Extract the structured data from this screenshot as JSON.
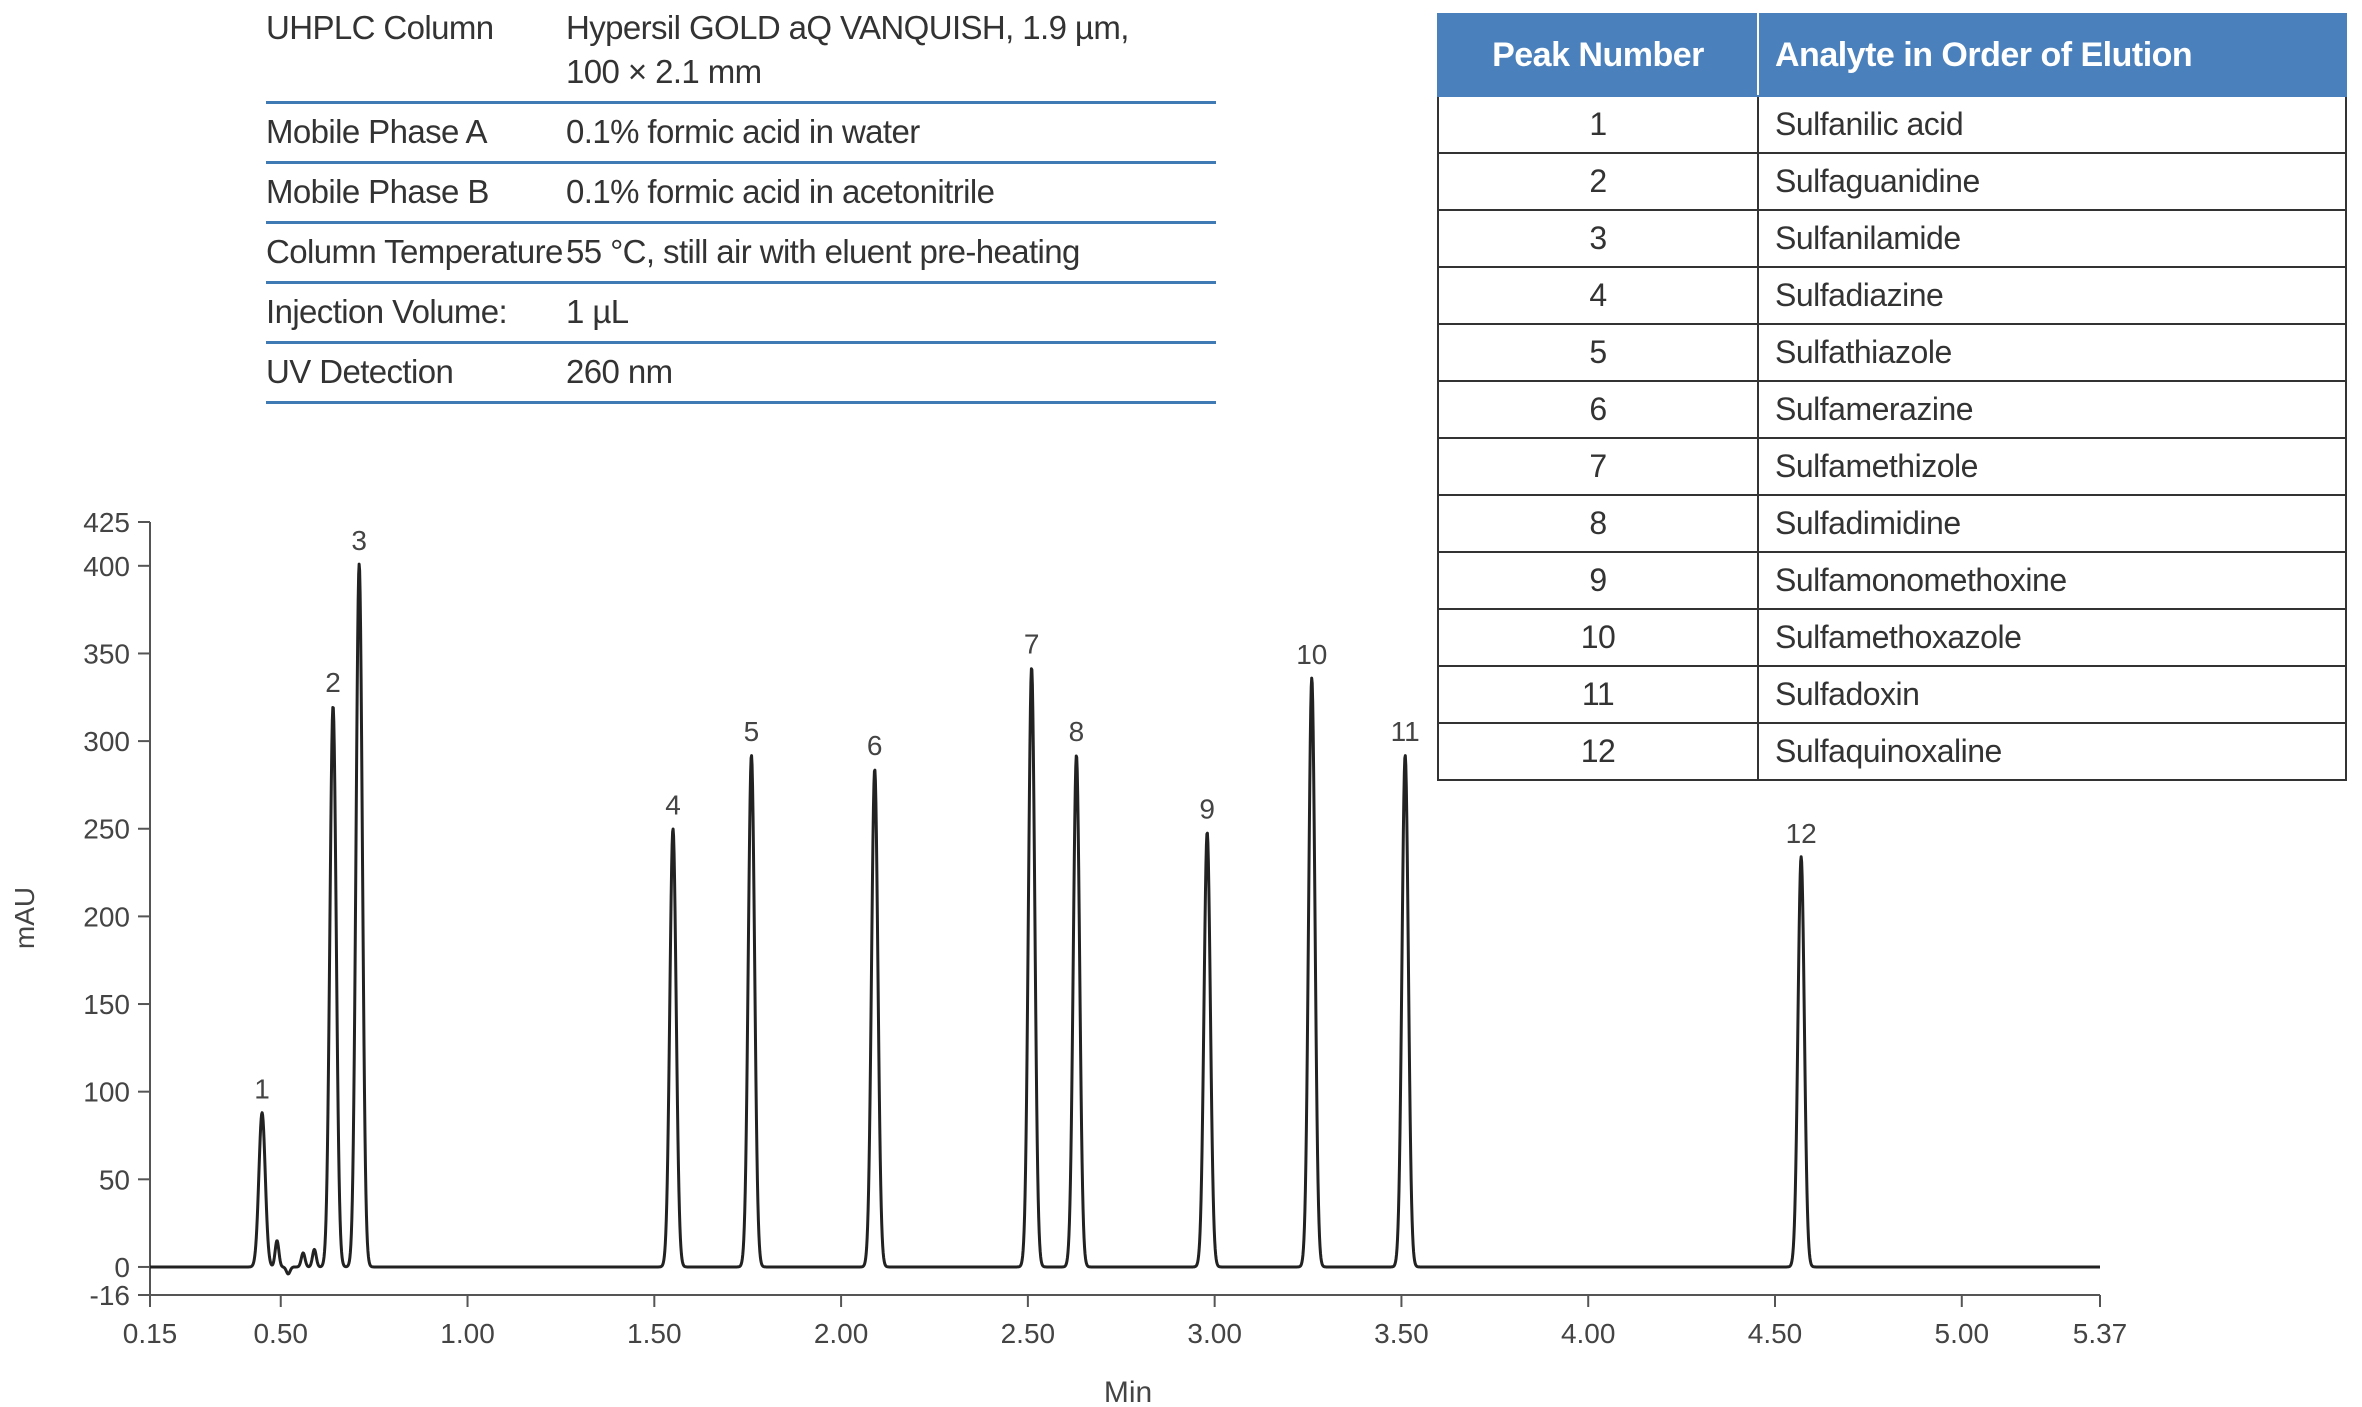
{
  "conditions": [
    {
      "label": "UHPLC Column",
      "value": "Hypersil GOLD aQ VANQUISH, 1.9 µm,\n100 × 2.1 mm"
    },
    {
      "label": "Mobile Phase A",
      "value": "0.1% formic acid in water"
    },
    {
      "label": "Mobile Phase B",
      "value": "0.1% formic acid in acetonitrile"
    },
    {
      "label": "Column Temperature",
      "value": "55 °C, still air with eluent pre-heating"
    },
    {
      "label": "Injection Volume:",
      "value": "1 µL"
    },
    {
      "label": "UV Detection",
      "value": "260 nm"
    }
  ],
  "peak_table": {
    "headers": [
      "Peak Number",
      "Analyte in Order of Elution"
    ],
    "rows": [
      [
        "1",
        "Sulfanilic acid"
      ],
      [
        "2",
        "Sulfaguanidine"
      ],
      [
        "3",
        "Sulfanilamide"
      ],
      [
        "4",
        "Sulfadiazine"
      ],
      [
        "5",
        "Sulfathiazole"
      ],
      [
        "6",
        "Sulfamerazine"
      ],
      [
        "7",
        "Sulfamethizole"
      ],
      [
        "8",
        "Sulfadimidine"
      ],
      [
        "9",
        "Sulfamonomethoxine"
      ],
      [
        "10",
        "Sulfamethoxazole"
      ],
      [
        "11",
        "Sulfadoxin"
      ],
      [
        "12",
        "Sulfaquinoxaline"
      ]
    ]
  },
  "chart_data": {
    "type": "line",
    "xlabel": "Min",
    "ylabel": "mAU",
    "xlim": [
      0.15,
      5.37
    ],
    "ylim": [
      -16,
      425
    ],
    "xticks": [
      0.15,
      0.5,
      1.0,
      1.5,
      2.0,
      2.5,
      3.0,
      3.5,
      4.0,
      4.5,
      5.0,
      5.37
    ],
    "xtick_labels": [
      "0.15",
      "0.50",
      "1.00",
      "1.50",
      "2.00",
      "2.50",
      "3.00",
      "3.50",
      "4.00",
      "4.50",
      "5.00",
      "5.37"
    ],
    "yticks": [
      -16,
      0,
      50,
      100,
      150,
      200,
      250,
      300,
      350,
      400,
      425
    ],
    "ytick_labels": [
      "-16",
      "0",
      "50",
      "100",
      "150",
      "200",
      "250",
      "300",
      "350",
      "400",
      "425"
    ],
    "series_color": "#222222",
    "peaks": [
      {
        "label": "1",
        "rt": 0.45,
        "height": 88
      },
      {
        "label": "2",
        "rt": 0.64,
        "height": 320
      },
      {
        "label": "3",
        "rt": 0.71,
        "height": 401
      },
      {
        "label": "4",
        "rt": 1.55,
        "height": 250
      },
      {
        "label": "5",
        "rt": 1.76,
        "height": 292
      },
      {
        "label": "6",
        "rt": 2.09,
        "height": 284
      },
      {
        "label": "7",
        "rt": 2.51,
        "height": 342
      },
      {
        "label": "8",
        "rt": 2.63,
        "height": 292
      },
      {
        "label": "9",
        "rt": 2.98,
        "height": 248
      },
      {
        "label": "10",
        "rt": 3.26,
        "height": 336
      },
      {
        "label": "11",
        "rt": 3.51,
        "height": 292
      },
      {
        "label": "12",
        "rt": 4.57,
        "height": 234
      }
    ],
    "minor_features": [
      {
        "rt": 0.49,
        "height": 15
      },
      {
        "rt": 0.52,
        "height": -4
      },
      {
        "rt": 0.56,
        "height": 8
      },
      {
        "rt": 0.59,
        "height": 10
      }
    ]
  }
}
